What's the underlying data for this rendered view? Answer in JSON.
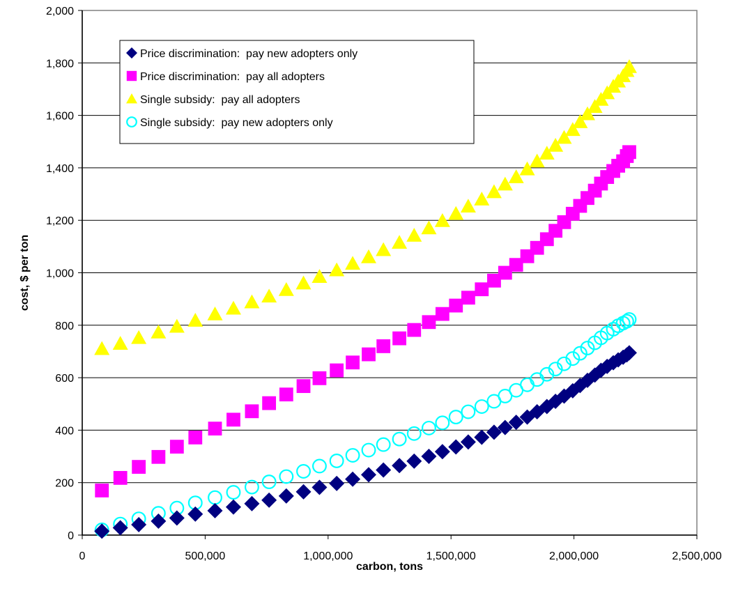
{
  "chart_data": {
    "type": "scatter",
    "title": "",
    "xlabel": "carbon, tons",
    "ylabel": "cost, $ per ton",
    "xlim": [
      0,
      2500000
    ],
    "ylim": [
      0,
      2000
    ],
    "x_ticks": [
      0,
      500000,
      1000000,
      1500000,
      2000000,
      2500000
    ],
    "x_tick_labels": [
      "0",
      "500,000",
      "1,000,000",
      "1,500,000",
      "2,000,000",
      "2,500,000"
    ],
    "y_ticks": [
      0,
      200,
      400,
      600,
      800,
      1000,
      1200,
      1400,
      1600,
      1800,
      2000
    ],
    "y_tick_labels": [
      "0",
      "200",
      "400",
      "600",
      "800",
      "1,000",
      "1,200",
      "1,400",
      "1,600",
      "1,800",
      "2,000"
    ],
    "grid": "horizontal",
    "legend_position": "top-left",
    "series": [
      {
        "name": "Price discrimination:  pay new adopters only",
        "marker": "diamond",
        "color": "#000080",
        "x": [
          80000,
          155000,
          230000,
          310000,
          385000,
          460000,
          540000,
          615000,
          690000,
          760000,
          830000,
          900000,
          965000,
          1035000,
          1100000,
          1165000,
          1225000,
          1290000,
          1350000,
          1410000,
          1465000,
          1520000,
          1570000,
          1625000,
          1675000,
          1720000,
          1765000,
          1810000,
          1850000,
          1890000,
          1925000,
          1960000,
          1995000,
          2025000,
          2055000,
          2085000,
          2110000,
          2135000,
          2160000,
          2180000,
          2200000,
          2215000,
          2225000
        ],
        "y": [
          15,
          28,
          40,
          53,
          65,
          80,
          93,
          107,
          120,
          133,
          149,
          165,
          182,
          197,
          213,
          230,
          248,
          265,
          282,
          300,
          318,
          336,
          355,
          373,
          392,
          410,
          430,
          450,
          470,
          490,
          510,
          530,
          550,
          570,
          590,
          610,
          628,
          643,
          657,
          668,
          678,
          687,
          695
        ]
      },
      {
        "name": "Price discrimination:  pay all adopters",
        "marker": "square",
        "color": "#FF00FF",
        "x": [
          80000,
          155000,
          230000,
          310000,
          385000,
          460000,
          540000,
          615000,
          690000,
          760000,
          830000,
          900000,
          965000,
          1035000,
          1100000,
          1165000,
          1225000,
          1290000,
          1350000,
          1410000,
          1465000,
          1520000,
          1570000,
          1625000,
          1675000,
          1720000,
          1765000,
          1810000,
          1850000,
          1890000,
          1925000,
          1960000,
          1995000,
          2025000,
          2055000,
          2085000,
          2110000,
          2135000,
          2160000,
          2180000,
          2200000,
          2215000,
          2225000
        ],
        "y": [
          170,
          218,
          260,
          298,
          337,
          372,
          406,
          440,
          472,
          503,
          536,
          568,
          598,
          628,
          658,
          689,
          720,
          750,
          782,
          812,
          843,
          875,
          905,
          937,
          970,
          1000,
          1030,
          1063,
          1095,
          1128,
          1160,
          1193,
          1225,
          1255,
          1285,
          1313,
          1340,
          1365,
          1388,
          1408,
          1425,
          1445,
          1460
        ]
      },
      {
        "name": "Single subsidy:  pay all adopters",
        "marker": "triangle",
        "color": "#FFFF00",
        "x": [
          80000,
          155000,
          230000,
          310000,
          385000,
          460000,
          540000,
          615000,
          690000,
          760000,
          830000,
          900000,
          965000,
          1035000,
          1100000,
          1165000,
          1225000,
          1290000,
          1350000,
          1410000,
          1465000,
          1520000,
          1570000,
          1625000,
          1675000,
          1720000,
          1765000,
          1810000,
          1850000,
          1890000,
          1925000,
          1960000,
          1995000,
          2025000,
          2055000,
          2085000,
          2110000,
          2135000,
          2160000,
          2180000,
          2200000,
          2215000,
          2225000
        ],
        "y": [
          710,
          730,
          752,
          773,
          795,
          818,
          842,
          864,
          888,
          910,
          935,
          960,
          985,
          1010,
          1035,
          1060,
          1087,
          1115,
          1142,
          1170,
          1198,
          1225,
          1253,
          1280,
          1308,
          1337,
          1365,
          1395,
          1425,
          1455,
          1485,
          1515,
          1545,
          1575,
          1605,
          1633,
          1660,
          1685,
          1710,
          1730,
          1750,
          1770,
          1785
        ]
      },
      {
        "name": "Single subsidy:  pay new adopters only",
        "marker": "circle-open",
        "color": "#00FFFF",
        "x": [
          80000,
          155000,
          230000,
          310000,
          385000,
          460000,
          540000,
          615000,
          690000,
          760000,
          830000,
          900000,
          965000,
          1035000,
          1100000,
          1165000,
          1225000,
          1290000,
          1350000,
          1410000,
          1465000,
          1520000,
          1570000,
          1625000,
          1675000,
          1720000,
          1765000,
          1810000,
          1850000,
          1890000,
          1925000,
          1960000,
          1995000,
          2025000,
          2055000,
          2085000,
          2110000,
          2135000,
          2160000,
          2180000,
          2200000,
          2215000,
          2225000
        ],
        "y": [
          20,
          42,
          62,
          83,
          103,
          123,
          143,
          163,
          183,
          203,
          223,
          243,
          263,
          283,
          304,
          324,
          345,
          366,
          387,
          408,
          428,
          450,
          470,
          490,
          510,
          530,
          552,
          573,
          593,
          613,
          633,
          653,
          673,
          693,
          713,
          733,
          752,
          770,
          785,
          798,
          808,
          815,
          822
        ]
      }
    ]
  }
}
